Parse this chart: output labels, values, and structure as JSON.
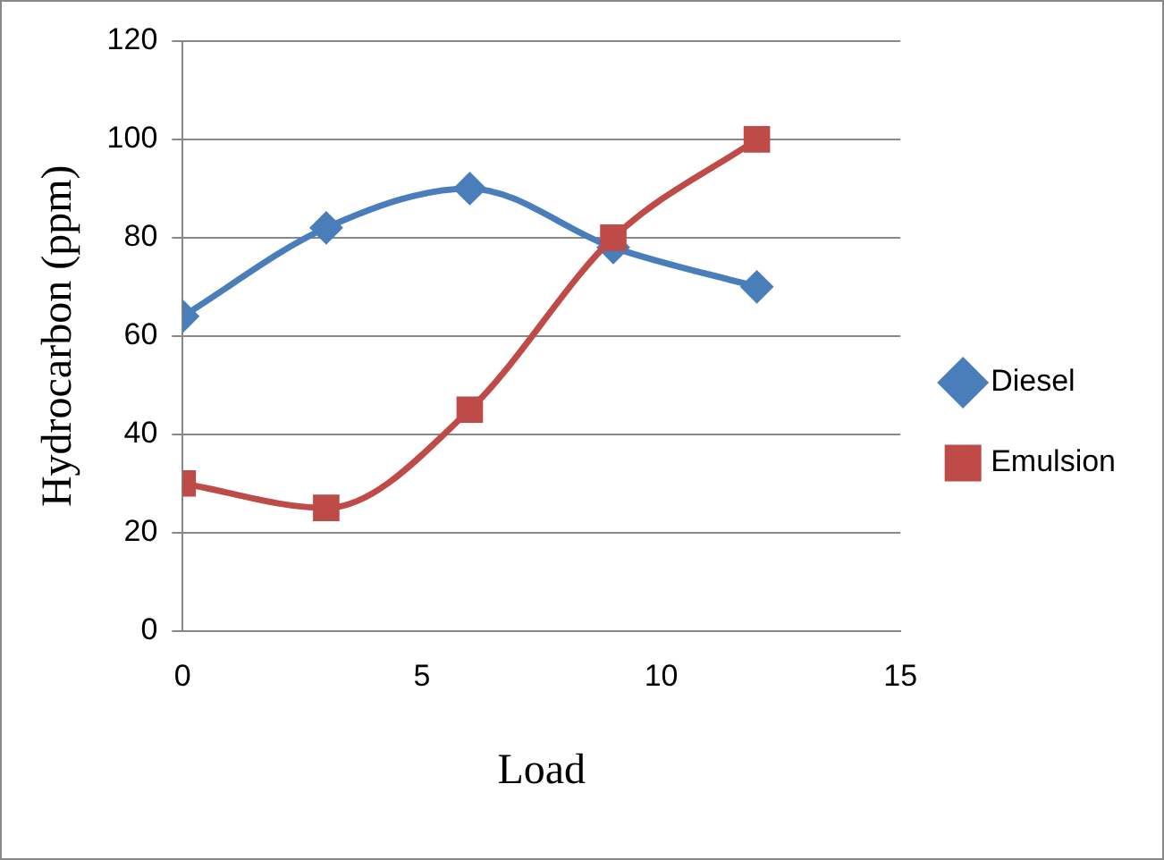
{
  "chart_data": {
    "type": "line",
    "xlabel": "Load",
    "ylabel": "Hydrocarbon (ppm)",
    "x": [
      0,
      3,
      6,
      9,
      12
    ],
    "series": [
      {
        "name": "Diesel",
        "color": "#4a7ebb",
        "values": [
          64,
          82,
          90,
          78,
          70
        ],
        "marker": "diamond"
      },
      {
        "name": "Emulsion",
        "color": "#be4b48",
        "values": [
          30,
          25,
          45,
          80,
          100
        ],
        "marker": "square"
      }
    ],
    "xlim": [
      0,
      15
    ],
    "xticks": [
      0,
      5,
      10,
      15
    ],
    "ylim": [
      0,
      120
    ],
    "yticks": [
      0,
      20,
      40,
      60,
      80,
      100,
      120
    ],
    "grid": "y",
    "legend": "right",
    "line_style": "solid"
  }
}
